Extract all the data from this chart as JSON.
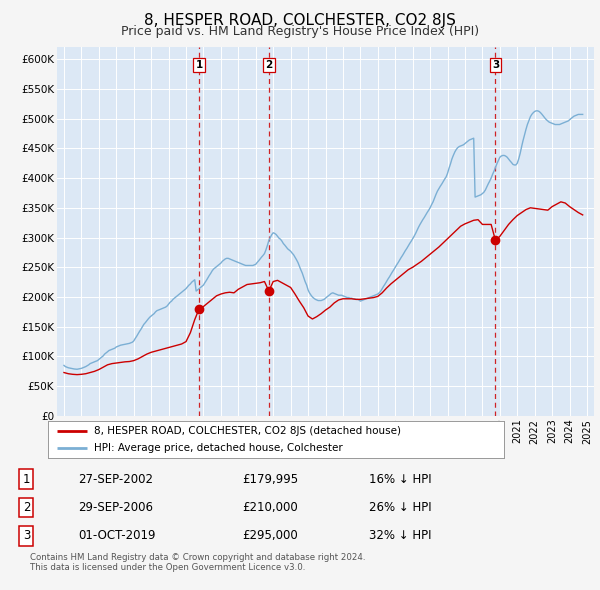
{
  "title": "8, HESPER ROAD, COLCHESTER, CO2 8JS",
  "subtitle": "Price paid vs. HM Land Registry's House Price Index (HPI)",
  "title_fontsize": 11,
  "subtitle_fontsize": 9,
  "bg_color": "#f5f5f5",
  "plot_bg_color": "#dce8f5",
  "grid_color": "#ffffff",
  "red_line_color": "#cc0000",
  "blue_line_color": "#7bafd4",
  "sale_marker_color": "#cc0000",
  "vline_color": "#cc0000",
  "ylim": [
    0,
    620000
  ],
  "ytick_labels": [
    "£0",
    "£50K",
    "£100K",
    "£150K",
    "£200K",
    "£250K",
    "£300K",
    "£350K",
    "£400K",
    "£450K",
    "£500K",
    "£550K",
    "£600K"
  ],
  "ytick_values": [
    0,
    50000,
    100000,
    150000,
    200000,
    250000,
    300000,
    350000,
    400000,
    450000,
    500000,
    550000,
    600000
  ],
  "sales": [
    {
      "label": "1",
      "date_num": 2002.75,
      "price": 179995
    },
    {
      "label": "2",
      "date_num": 2006.75,
      "price": 210000
    },
    {
      "label": "3",
      "date_num": 2019.75,
      "price": 295000
    }
  ],
  "sale_table": [
    {
      "num": "1",
      "date": "27-SEP-2002",
      "price": "£179,995",
      "pct": "16% ↓ HPI"
    },
    {
      "num": "2",
      "date": "29-SEP-2006",
      "price": "£210,000",
      "pct": "26% ↓ HPI"
    },
    {
      "num": "3",
      "date": "01-OCT-2019",
      "price": "£295,000",
      "pct": "32% ↓ HPI"
    }
  ],
  "legend_label_red": "8, HESPER ROAD, COLCHESTER, CO2 8JS (detached house)",
  "legend_label_blue": "HPI: Average price, detached house, Colchester",
  "footer": "Contains HM Land Registry data © Crown copyright and database right 2024.\nThis data is licensed under the Open Government Licence v3.0.",
  "hpi_data": {
    "x": [
      1995.0,
      1995.08,
      1995.17,
      1995.25,
      1995.33,
      1995.42,
      1995.5,
      1995.58,
      1995.67,
      1995.75,
      1995.83,
      1995.92,
      1996.0,
      1996.08,
      1996.17,
      1996.25,
      1996.33,
      1996.42,
      1996.5,
      1996.58,
      1996.67,
      1996.75,
      1996.83,
      1996.92,
      1997.0,
      1997.08,
      1997.17,
      1997.25,
      1997.33,
      1997.42,
      1997.5,
      1997.58,
      1997.67,
      1997.75,
      1997.83,
      1997.92,
      1998.0,
      1998.08,
      1998.17,
      1998.25,
      1998.33,
      1998.42,
      1998.5,
      1998.58,
      1998.67,
      1998.75,
      1998.83,
      1998.92,
      1999.0,
      1999.08,
      1999.17,
      1999.25,
      1999.33,
      1999.42,
      1999.5,
      1999.58,
      1999.67,
      1999.75,
      1999.83,
      1999.92,
      2000.0,
      2000.08,
      2000.17,
      2000.25,
      2000.33,
      2000.42,
      2000.5,
      2000.58,
      2000.67,
      2000.75,
      2000.83,
      2000.92,
      2001.0,
      2001.08,
      2001.17,
      2001.25,
      2001.33,
      2001.42,
      2001.5,
      2001.58,
      2001.67,
      2001.75,
      2001.83,
      2001.92,
      2002.0,
      2002.08,
      2002.17,
      2002.25,
      2002.33,
      2002.42,
      2002.5,
      2002.58,
      2002.67,
      2002.75,
      2002.83,
      2002.92,
      2003.0,
      2003.08,
      2003.17,
      2003.25,
      2003.33,
      2003.42,
      2003.5,
      2003.58,
      2003.67,
      2003.75,
      2003.83,
      2003.92,
      2004.0,
      2004.08,
      2004.17,
      2004.25,
      2004.33,
      2004.42,
      2004.5,
      2004.58,
      2004.67,
      2004.75,
      2004.83,
      2004.92,
      2005.0,
      2005.08,
      2005.17,
      2005.25,
      2005.33,
      2005.42,
      2005.5,
      2005.58,
      2005.67,
      2005.75,
      2005.83,
      2005.92,
      2006.0,
      2006.08,
      2006.17,
      2006.25,
      2006.33,
      2006.42,
      2006.5,
      2006.58,
      2006.67,
      2006.75,
      2006.83,
      2006.92,
      2007.0,
      2007.08,
      2007.17,
      2007.25,
      2007.33,
      2007.42,
      2007.5,
      2007.58,
      2007.67,
      2007.75,
      2007.83,
      2007.92,
      2008.0,
      2008.08,
      2008.17,
      2008.25,
      2008.33,
      2008.42,
      2008.5,
      2008.58,
      2008.67,
      2008.75,
      2008.83,
      2008.92,
      2009.0,
      2009.08,
      2009.17,
      2009.25,
      2009.33,
      2009.42,
      2009.5,
      2009.58,
      2009.67,
      2009.75,
      2009.83,
      2009.92,
      2010.0,
      2010.08,
      2010.17,
      2010.25,
      2010.33,
      2010.42,
      2010.5,
      2010.58,
      2010.67,
      2010.75,
      2010.83,
      2010.92,
      2011.0,
      2011.08,
      2011.17,
      2011.25,
      2011.33,
      2011.42,
      2011.5,
      2011.58,
      2011.67,
      2011.75,
      2011.83,
      2011.92,
      2012.0,
      2012.08,
      2012.17,
      2012.25,
      2012.33,
      2012.42,
      2012.5,
      2012.58,
      2012.67,
      2012.75,
      2012.83,
      2012.92,
      2013.0,
      2013.08,
      2013.17,
      2013.25,
      2013.33,
      2013.42,
      2013.5,
      2013.58,
      2013.67,
      2013.75,
      2013.83,
      2013.92,
      2014.0,
      2014.08,
      2014.17,
      2014.25,
      2014.33,
      2014.42,
      2014.5,
      2014.58,
      2014.67,
      2014.75,
      2014.83,
      2014.92,
      2015.0,
      2015.08,
      2015.17,
      2015.25,
      2015.33,
      2015.42,
      2015.5,
      2015.58,
      2015.67,
      2015.75,
      2015.83,
      2015.92,
      2016.0,
      2016.08,
      2016.17,
      2016.25,
      2016.33,
      2016.42,
      2016.5,
      2016.58,
      2016.67,
      2016.75,
      2016.83,
      2016.92,
      2017.0,
      2017.08,
      2017.17,
      2017.25,
      2017.33,
      2017.42,
      2017.5,
      2017.58,
      2017.67,
      2017.75,
      2017.83,
      2017.92,
      2018.0,
      2018.08,
      2018.17,
      2018.25,
      2018.33,
      2018.42,
      2018.5,
      2018.58,
      2018.67,
      2018.75,
      2018.83,
      2018.92,
      2019.0,
      2019.08,
      2019.17,
      2019.25,
      2019.33,
      2019.42,
      2019.5,
      2019.58,
      2019.67,
      2019.75,
      2019.83,
      2019.92,
      2020.0,
      2020.08,
      2020.17,
      2020.25,
      2020.33,
      2020.42,
      2020.5,
      2020.58,
      2020.67,
      2020.75,
      2020.83,
      2020.92,
      2021.0,
      2021.08,
      2021.17,
      2021.25,
      2021.33,
      2021.42,
      2021.5,
      2021.58,
      2021.67,
      2021.75,
      2021.83,
      2021.92,
      2022.0,
      2022.08,
      2022.17,
      2022.25,
      2022.33,
      2022.42,
      2022.5,
      2022.58,
      2022.67,
      2022.75,
      2022.83,
      2022.92,
      2023.0,
      2023.08,
      2023.17,
      2023.25,
      2023.33,
      2023.42,
      2023.5,
      2023.58,
      2023.67,
      2023.75,
      2023.83,
      2023.92,
      2024.0,
      2024.08,
      2024.17,
      2024.25,
      2024.33,
      2024.42,
      2024.5,
      2024.58,
      2024.67,
      2024.75
    ],
    "y": [
      85000,
      83000,
      82000,
      81000,
      80500,
      80000,
      79500,
      79000,
      78800,
      78500,
      79000,
      79500,
      80000,
      81000,
      82000,
      83000,
      84500,
      86000,
      88000,
      89000,
      90000,
      91000,
      92000,
      93000,
      95000,
      97000,
      99000,
      101000,
      104000,
      106000,
      108000,
      110000,
      111000,
      112000,
      113000,
      114000,
      116000,
      117000,
      118000,
      119000,
      119500,
      120000,
      120500,
      121000,
      121500,
      122000,
      123000,
      124000,
      126000,
      130000,
      134000,
      138000,
      142000,
      146000,
      150000,
      154000,
      157000,
      160000,
      163000,
      166000,
      168000,
      170000,
      172000,
      175000,
      177000,
      178000,
      179000,
      180000,
      181000,
      182000,
      183000,
      185000,
      188000,
      191000,
      193000,
      196000,
      198000,
      200000,
      202000,
      204000,
      206000,
      208000,
      210000,
      212000,
      214000,
      217000,
      220000,
      222000,
      225000,
      227000,
      229000,
      210000,
      212000,
      214000,
      216000,
      218000,
      220000,
      224000,
      228000,
      232000,
      236000,
      240000,
      244000,
      247000,
      249000,
      251000,
      253000,
      255000,
      257000,
      260000,
      262000,
      264000,
      265000,
      265000,
      264000,
      263000,
      262000,
      261000,
      260000,
      259000,
      258000,
      257000,
      256000,
      255000,
      254000,
      253000,
      253000,
      253000,
      253000,
      253000,
      253000,
      254000,
      255000,
      258000,
      261000,
      264000,
      267000,
      270000,
      273000,
      279000,
      287000,
      295000,
      300000,
      305000,
      308000,
      307000,
      305000,
      302000,
      299000,
      297000,
      294000,
      290000,
      287000,
      284000,
      281000,
      279000,
      277000,
      274000,
      271000,
      267000,
      263000,
      258000,
      252000,
      246000,
      240000,
      233000,
      226000,
      220000,
      212000,
      207000,
      203000,
      200000,
      198000,
      196000,
      195000,
      194000,
      194000,
      194000,
      195000,
      196000,
      198000,
      200000,
      202000,
      204000,
      206000,
      207000,
      206000,
      205000,
      204000,
      203000,
      203000,
      203000,
      202000,
      201000,
      200000,
      199000,
      199000,
      198000,
      198000,
      197000,
      197000,
      196000,
      196000,
      195000,
      193000,
      194000,
      195000,
      196000,
      197000,
      198000,
      199000,
      200000,
      201000,
      202000,
      203000,
      204000,
      205000,
      207000,
      210000,
      214000,
      218000,
      222000,
      226000,
      230000,
      234000,
      238000,
      242000,
      246000,
      250000,
      254000,
      258000,
      262000,
      266000,
      270000,
      274000,
      278000,
      282000,
      286000,
      290000,
      294000,
      298000,
      302000,
      307000,
      312000,
      317000,
      322000,
      326000,
      330000,
      334000,
      338000,
      342000,
      346000,
      350000,
      355000,
      360000,
      366000,
      372000,
      378000,
      382000,
      386000,
      390000,
      394000,
      398000,
      402000,
      408000,
      416000,
      424000,
      432000,
      438000,
      444000,
      448000,
      451000,
      453000,
      454000,
      455000,
      456000,
      458000,
      460000,
      462000,
      464000,
      465000,
      466000,
      467000,
      368000,
      369000,
      370000,
      371000,
      372000,
      374000,
      376000,
      380000,
      385000,
      390000,
      395000,
      400000,
      406000,
      412000,
      418000,
      424000,
      430000,
      435000,
      437000,
      438000,
      438000,
      437000,
      435000,
      432000,
      429000,
      426000,
      423000,
      422000,
      422000,
      425000,
      432000,
      442000,
      453000,
      463000,
      473000,
      482000,
      490000,
      497000,
      503000,
      507000,
      510000,
      512000,
      513000,
      513000,
      512000,
      510000,
      507000,
      504000,
      501000,
      498000,
      496000,
      494000,
      493000,
      492000,
      491000,
      490000,
      490000,
      490000,
      490000,
      491000,
      492000,
      493000,
      494000,
      495000,
      496000,
      498000,
      500000,
      502000,
      504000,
      505000,
      506000,
      507000,
      507000,
      507000,
      507000
    ]
  },
  "red_data": {
    "x": [
      1995.0,
      1995.25,
      1995.5,
      1995.75,
      1996.0,
      1996.25,
      1996.5,
      1996.75,
      1997.0,
      1997.25,
      1997.5,
      1997.75,
      1998.0,
      1998.25,
      1998.5,
      1998.75,
      1999.0,
      1999.25,
      1999.5,
      1999.75,
      2000.0,
      2000.25,
      2000.5,
      2000.75,
      2001.0,
      2001.25,
      2001.5,
      2001.75,
      2002.0,
      2002.25,
      2002.5,
      2002.75,
      2003.0,
      2003.25,
      2003.5,
      2003.75,
      2004.0,
      2004.25,
      2004.5,
      2004.75,
      2005.0,
      2005.25,
      2005.5,
      2005.75,
      2006.0,
      2006.25,
      2006.5,
      2006.75,
      2007.0,
      2007.25,
      2007.5,
      2007.75,
      2008.0,
      2008.25,
      2008.5,
      2008.75,
      2009.0,
      2009.25,
      2009.5,
      2009.75,
      2010.0,
      2010.25,
      2010.5,
      2010.75,
      2011.0,
      2011.25,
      2011.5,
      2011.75,
      2012.0,
      2012.25,
      2012.5,
      2012.75,
      2013.0,
      2013.25,
      2013.5,
      2013.75,
      2014.0,
      2014.25,
      2014.5,
      2014.75,
      2015.0,
      2015.25,
      2015.5,
      2015.75,
      2016.0,
      2016.25,
      2016.5,
      2016.75,
      2017.0,
      2017.25,
      2017.5,
      2017.75,
      2018.0,
      2018.25,
      2018.5,
      2018.75,
      2019.0,
      2019.25,
      2019.5,
      2019.75,
      2020.0,
      2020.25,
      2020.5,
      2020.75,
      2021.0,
      2021.25,
      2021.5,
      2021.75,
      2022.0,
      2022.25,
      2022.5,
      2022.75,
      2023.0,
      2023.25,
      2023.5,
      2023.75,
      2024.0,
      2024.25,
      2024.5,
      2024.75
    ],
    "y": [
      73000,
      71000,
      70000,
      69500,
      70000,
      71000,
      73000,
      75000,
      78000,
      82000,
      86000,
      88000,
      89000,
      90000,
      91000,
      91500,
      93000,
      96000,
      100000,
      104000,
      107000,
      109000,
      111000,
      113000,
      115000,
      117000,
      119000,
      121000,
      125000,
      140000,
      162000,
      179995,
      184000,
      190000,
      196000,
      202000,
      205000,
      207000,
      208000,
      207000,
      213000,
      217000,
      221000,
      222000,
      223000,
      224000,
      226000,
      210000,
      226000,
      228000,
      224000,
      220000,
      216000,
      205000,
      193000,
      182000,
      168000,
      163000,
      167000,
      172000,
      178000,
      183000,
      190000,
      195000,
      197000,
      197000,
      197000,
      196000,
      196000,
      197000,
      198000,
      199000,
      201000,
      207000,
      215000,
      222000,
      228000,
      234000,
      240000,
      246000,
      250000,
      255000,
      260000,
      266000,
      272000,
      278000,
      284000,
      291000,
      298000,
      305000,
      312000,
      319000,
      323000,
      326000,
      329000,
      330000,
      322000,
      322000,
      322000,
      295000,
      302000,
      312000,
      322000,
      330000,
      337000,
      342000,
      347000,
      350000,
      349000,
      348000,
      347000,
      346000,
      352000,
      356000,
      360000,
      358000,
      352000,
      347000,
      342000,
      338000
    ]
  }
}
